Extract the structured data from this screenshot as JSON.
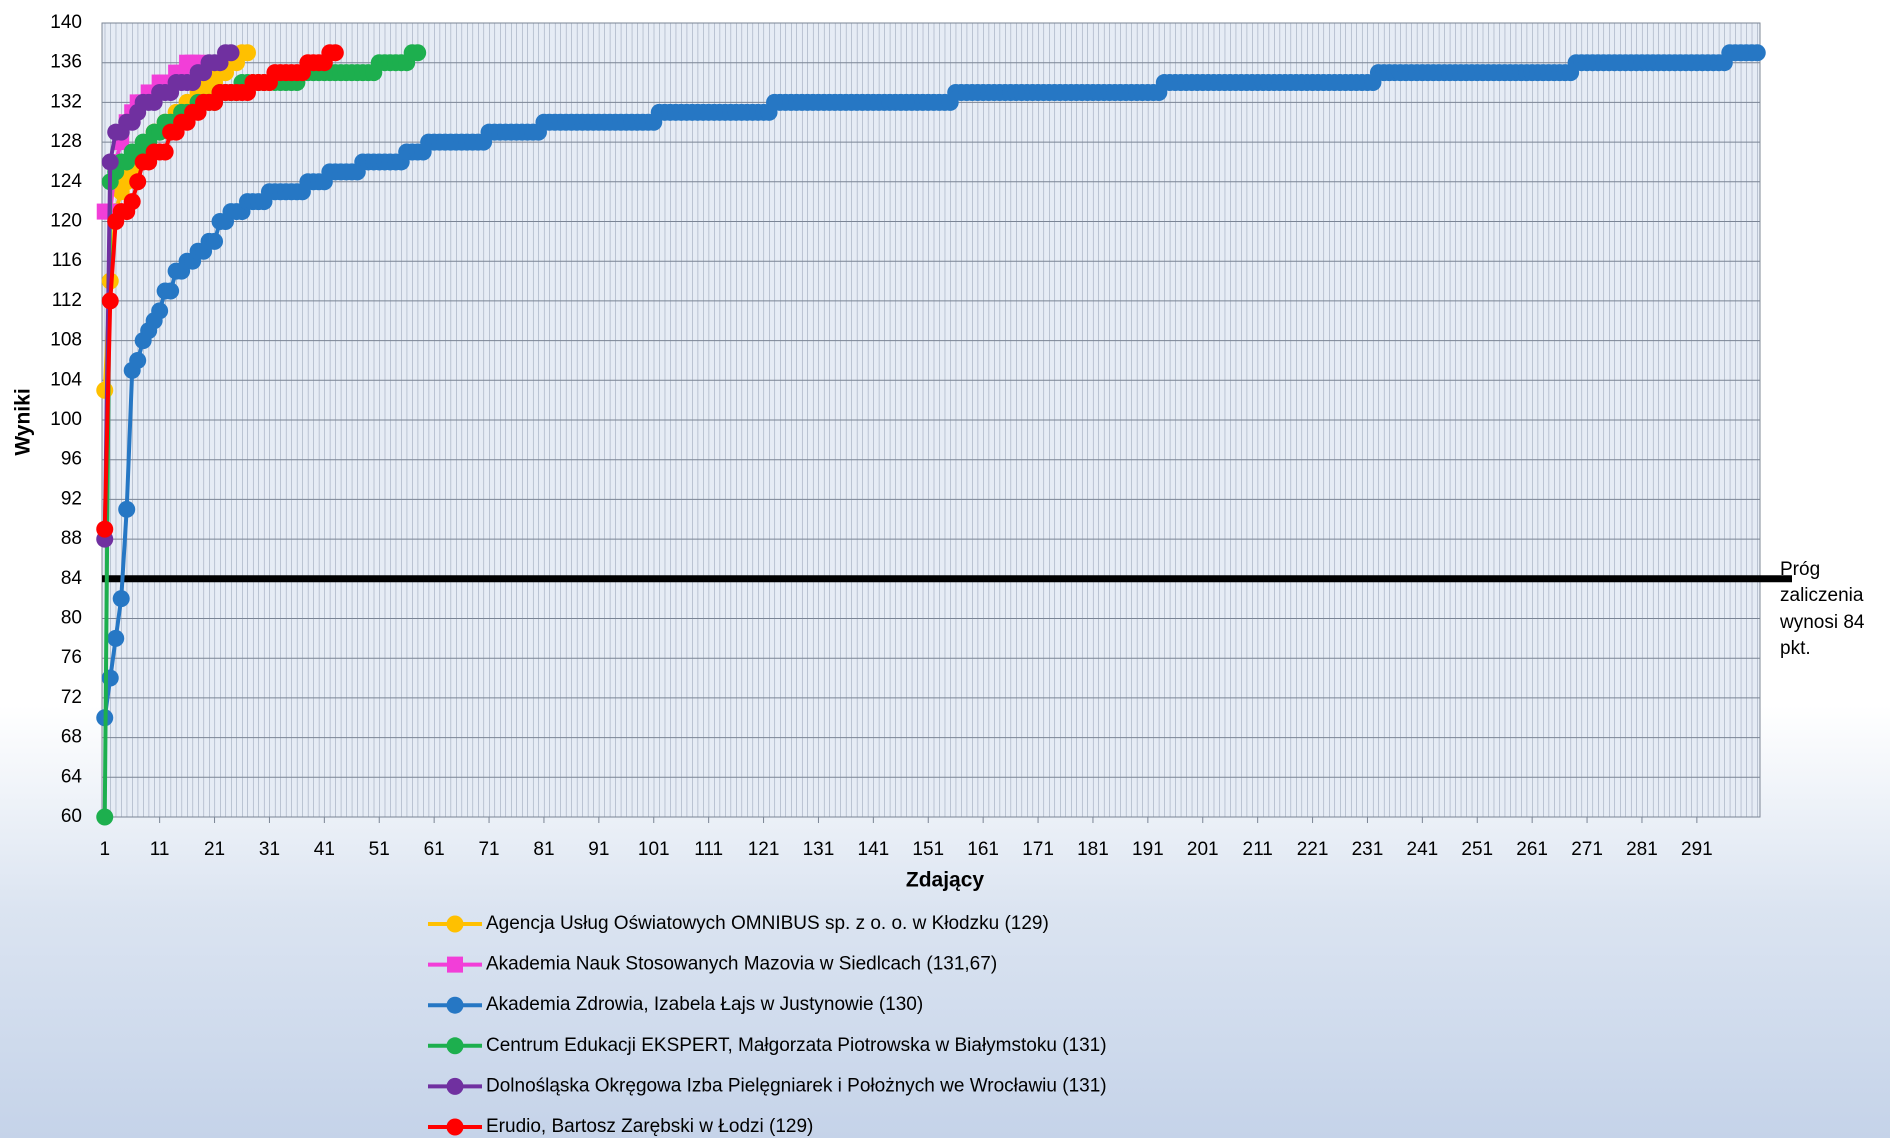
{
  "chart_data": {
    "type": "line",
    "xlabel": "Zdający",
    "ylabel": "Wyniki",
    "xlim": [
      0.5,
      302.5
    ],
    "ylim": [
      60,
      140
    ],
    "xticks": [
      1,
      11,
      21,
      31,
      41,
      51,
      61,
      71,
      81,
      91,
      101,
      111,
      121,
      131,
      141,
      151,
      161,
      171,
      181,
      191,
      201,
      211,
      221,
      231,
      241,
      251,
      261,
      271,
      281,
      291
    ],
    "yticks": [
      60,
      64,
      68,
      72,
      76,
      80,
      84,
      88,
      92,
      96,
      100,
      104,
      108,
      112,
      116,
      120,
      124,
      128,
      132,
      136,
      140
    ],
    "grid": true,
    "legend": "bottom",
    "threshold": {
      "value": 84,
      "label": "Próg zaliczenia wynosi 84 pkt.",
      "color": "#000000"
    },
    "series": [
      {
        "name": "Agencja Usług Oświatowych OMNIBUS sp. z o. o. w Kłodzku (129)",
        "color": "#FFC000",
        "marker": "circle",
        "x": [
          1,
          2,
          3,
          4,
          5,
          6,
          7,
          8,
          9,
          10,
          11,
          12,
          13,
          14,
          15,
          16,
          17,
          18,
          19,
          20,
          21,
          22,
          23,
          24,
          25,
          26,
          27
        ],
        "values": [
          103,
          114,
          121,
          123,
          124,
          125,
          126,
          127,
          128,
          129,
          129,
          130,
          130,
          131,
          131,
          132,
          132,
          133,
          133,
          134,
          134,
          135,
          135,
          136,
          136,
          137,
          137
        ]
      },
      {
        "name": "Akademia Nauk Stosowanych Mazovia w Siedlcach (131,67)",
        "color": "#F23ED8",
        "marker": "square",
        "x": [
          1,
          2,
          3,
          4,
          5,
          6,
          7,
          8,
          9,
          10,
          11,
          12,
          13,
          14,
          15,
          16,
          17,
          18
        ],
        "values": [
          121,
          121,
          126,
          128,
          130,
          131,
          132,
          132,
          133,
          133,
          134,
          134,
          134,
          135,
          135,
          136,
          136,
          136
        ]
      },
      {
        "name": "Akademia Zdrowia, Izabela Łajs w Justynowie (130)",
        "color": "#2677C4",
        "marker": "circle",
        "x": [
          1,
          2,
          3,
          4,
          5,
          6,
          7,
          8,
          9,
          10,
          11,
          12,
          13,
          14,
          15,
          16,
          17,
          18,
          19,
          20,
          21,
          22,
          23,
          24,
          25,
          26,
          27,
          28,
          29,
          30,
          31,
          32,
          33,
          34,
          35,
          36,
          37,
          38,
          39,
          40,
          41,
          42,
          43,
          44,
          45,
          46,
          47,
          48,
          49,
          50,
          51,
          52,
          53,
          54,
          55,
          56,
          57,
          58,
          59,
          60,
          61,
          62,
          63,
          64,
          65,
          66,
          67,
          68,
          69,
          70,
          71,
          72,
          73,
          74,
          75,
          76,
          77,
          78,
          79,
          80,
          81,
          82,
          83,
          84,
          85,
          86,
          87,
          88,
          89,
          90,
          91,
          92,
          93,
          94,
          95,
          96,
          97,
          98,
          99,
          100,
          101,
          102,
          103,
          104,
          105,
          106,
          107,
          108,
          109,
          110,
          111,
          112,
          113,
          114,
          115,
          116,
          117,
          118,
          119,
          120,
          121,
          122,
          123,
          124,
          125,
          126,
          127,
          128,
          129,
          130,
          131,
          132,
          133,
          134,
          135,
          136,
          137,
          138,
          139,
          140,
          141,
          142,
          143,
          144,
          145,
          146,
          147,
          148,
          149,
          150,
          151,
          152,
          153,
          154,
          155,
          156,
          157,
          158,
          159,
          160,
          161,
          162,
          163,
          164,
          165,
          166,
          167,
          168,
          169,
          170,
          171,
          172,
          173,
          174,
          175,
          176,
          177,
          178,
          179,
          180,
          181,
          182,
          183,
          184,
          185,
          186,
          187,
          188,
          189,
          190,
          191,
          192,
          193,
          194,
          195,
          196,
          197,
          198,
          199,
          200,
          201,
          202,
          203,
          204,
          205,
          206,
          207,
          208,
          209,
          210,
          211,
          212,
          213,
          214,
          215,
          216,
          217,
          218,
          219,
          220,
          221,
          222,
          223,
          224,
          225,
          226,
          227,
          228,
          229,
          230,
          231,
          232,
          233,
          234,
          235,
          236,
          237,
          238,
          239,
          240,
          241,
          242,
          243,
          244,
          245,
          246,
          247,
          248,
          249,
          250,
          251,
          252,
          253,
          254,
          255,
          256,
          257,
          258,
          259,
          260,
          261,
          262,
          263,
          264,
          265,
          266,
          267,
          268,
          269,
          270,
          271,
          272,
          273,
          274,
          275,
          276,
          277,
          278,
          279,
          280,
          281,
          282,
          283,
          284,
          285,
          286,
          287,
          288,
          289,
          290,
          291,
          292,
          293,
          294,
          295,
          296,
          297,
          298,
          299,
          300,
          301,
          302
        ],
        "values": [
          70,
          74,
          78,
          82,
          91,
          105,
          106,
          108,
          109,
          110,
          111,
          113,
          113,
          115,
          115,
          116,
          116,
          117,
          117,
          118,
          118,
          120,
          120,
          121,
          121,
          121,
          122,
          122,
          122,
          122,
          123,
          123,
          123,
          123,
          123,
          123,
          123,
          124,
          124,
          124,
          124,
          125,
          125,
          125,
          125,
          125,
          125,
          126,
          126,
          126,
          126,
          126,
          126,
          126,
          126,
          127,
          127,
          127,
          127,
          128,
          128,
          128,
          128,
          128,
          128,
          128,
          128,
          128,
          128,
          128,
          129,
          129,
          129,
          129,
          129,
          129,
          129,
          129,
          129,
          129,
          130,
          130,
          130,
          130,
          130,
          130,
          130,
          130,
          130,
          130,
          130,
          130,
          130,
          130,
          130,
          130,
          130,
          130,
          130,
          130,
          130,
          131,
          131,
          131,
          131,
          131,
          131,
          131,
          131,
          131,
          131,
          131,
          131,
          131,
          131,
          131,
          131,
          131,
          131,
          131,
          131,
          131,
          132,
          132,
          132,
          132,
          132,
          132,
          132,
          132,
          132,
          132,
          132,
          132,
          132,
          132,
          132,
          132,
          132,
          132,
          132,
          132,
          132,
          132,
          132,
          132,
          132,
          132,
          132,
          132,
          132,
          132,
          132,
          132,
          132,
          133,
          133,
          133,
          133,
          133,
          133,
          133,
          133,
          133,
          133,
          133,
          133,
          133,
          133,
          133,
          133,
          133,
          133,
          133,
          133,
          133,
          133,
          133,
          133,
          133,
          133,
          133,
          133,
          133,
          133,
          133,
          133,
          133,
          133,
          133,
          133,
          133,
          133,
          134,
          134,
          134,
          134,
          134,
          134,
          134,
          134,
          134,
          134,
          134,
          134,
          134,
          134,
          134,
          134,
          134,
          134,
          134,
          134,
          134,
          134,
          134,
          134,
          134,
          134,
          134,
          134,
          134,
          134,
          134,
          134,
          134,
          134,
          134,
          134,
          134,
          134,
          134,
          135,
          135,
          135,
          135,
          135,
          135,
          135,
          135,
          135,
          135,
          135,
          135,
          135,
          135,
          135,
          135,
          135,
          135,
          135,
          135,
          135,
          135,
          135,
          135,
          135,
          135,
          135,
          135,
          135,
          135,
          135,
          135,
          135,
          135,
          135,
          135,
          136,
          136,
          136,
          136,
          136,
          136,
          136,
          136,
          136,
          136,
          136,
          136,
          136,
          136,
          136,
          136,
          136,
          136,
          136,
          136,
          136,
          136,
          136,
          136,
          136,
          136,
          136,
          136,
          137,
          137,
          137,
          137,
          137,
          137
        ]
      },
      {
        "name": "Centrum Edukacji EKSPERT, Małgorzata Piotrowska w Białymstoku (131)",
        "color": "#1DAF4E",
        "marker": "circle",
        "x": [
          1,
          2,
          3,
          4,
          5,
          6,
          7,
          8,
          9,
          10,
          11,
          12,
          13,
          14,
          15,
          16,
          17,
          18,
          19,
          20,
          21,
          22,
          23,
          24,
          25,
          26,
          27,
          28,
          29,
          30,
          31,
          32,
          33,
          34,
          35,
          36,
          37,
          38,
          39,
          40,
          41,
          42,
          43,
          44,
          45,
          46,
          47,
          48,
          49,
          50,
          51,
          52,
          53,
          54,
          55,
          56,
          57,
          58
        ],
        "values": [
          60,
          124,
          125,
          126,
          126,
          127,
          127,
          128,
          128,
          129,
          129,
          130,
          130,
          130,
          131,
          131,
          131,
          132,
          132,
          132,
          132,
          133,
          133,
          133,
          133,
          134,
          134,
          134,
          134,
          134,
          134,
          134,
          134,
          134,
          134,
          134,
          135,
          135,
          135,
          135,
          135,
          135,
          135,
          135,
          135,
          135,
          135,
          135,
          135,
          135,
          136,
          136,
          136,
          136,
          136,
          136,
          137,
          137
        ]
      },
      {
        "name": "Dolnośląska Okręgowa Izba Pielęgniarek i Położnych we Wrocławiu (131)",
        "color": "#7030A0",
        "marker": "circle",
        "x": [
          1,
          2,
          3,
          4,
          5,
          6,
          7,
          8,
          9,
          10,
          11,
          12,
          13,
          14,
          15,
          16,
          17,
          18,
          19,
          20,
          21,
          22,
          23,
          24
        ],
        "values": [
          88,
          126,
          129,
          129,
          130,
          130,
          131,
          132,
          132,
          132,
          133,
          133,
          133,
          134,
          134,
          134,
          134,
          135,
          135,
          136,
          136,
          136,
          137,
          137
        ]
      },
      {
        "name": "Erudio, Bartosz Zarębski w Łodzi (129)",
        "color": "#FF0000",
        "marker": "circle",
        "x": [
          1,
          2,
          3,
          4,
          5,
          6,
          7,
          8,
          9,
          10,
          11,
          12,
          13,
          14,
          15,
          16,
          17,
          18,
          19,
          20,
          21,
          22,
          23,
          24,
          25,
          26,
          27,
          28,
          29,
          30,
          31,
          32,
          33,
          34,
          35,
          36,
          37,
          38,
          39,
          40,
          41,
          42,
          43
        ],
        "values": [
          89,
          112,
          120,
          121,
          121,
          122,
          124,
          126,
          126,
          127,
          127,
          127,
          129,
          129,
          130,
          130,
          131,
          131,
          132,
          132,
          132,
          133,
          133,
          133,
          133,
          133,
          133,
          134,
          134,
          134,
          134,
          135,
          135,
          135,
          135,
          135,
          135,
          136,
          136,
          136,
          136,
          137,
          137
        ]
      }
    ]
  }
}
